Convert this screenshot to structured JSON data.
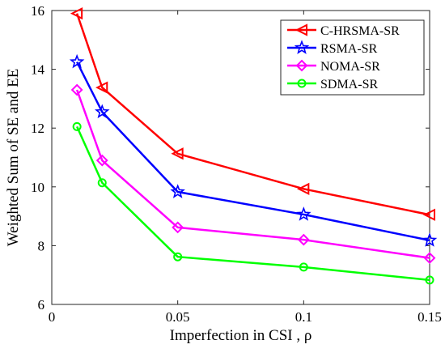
{
  "chart_data": {
    "type": "line",
    "xlabel": "Imperfection in CSI , ρ",
    "ylabel": "Weighted Sum of SE and EE",
    "xlim": [
      0,
      0.15
    ],
    "ylim": [
      6,
      16
    ],
    "x_ticks": [
      0,
      0.05,
      0.1,
      0.15
    ],
    "x_tick_labels": [
      "0",
      "0.05",
      "0.1",
      "0.15"
    ],
    "y_ticks": [
      6,
      8,
      10,
      12,
      14,
      16
    ],
    "y_tick_labels": [
      "6",
      "8",
      "10",
      "12",
      "14",
      "16"
    ],
    "grid": false,
    "legend_position": "top-right",
    "x": [
      0.01,
      0.02,
      0.05,
      0.1,
      0.15
    ],
    "series": [
      {
        "name": "C-HRSMA-SR",
        "color": "#ff0000",
        "marker": "triangle-left",
        "values": [
          15.9,
          13.38,
          11.13,
          9.93,
          9.05
        ]
      },
      {
        "name": "RSMA-SR",
        "color": "#0000ff",
        "marker": "star",
        "values": [
          14.25,
          12.55,
          9.83,
          9.06,
          8.18
        ]
      },
      {
        "name": "NOMA-SR",
        "color": "#ff00ff",
        "marker": "diamond",
        "values": [
          13.3,
          10.9,
          8.62,
          8.2,
          7.58
        ]
      },
      {
        "name": "SDMA-SR",
        "color": "#00ff00",
        "marker": "circle",
        "values": [
          12.05,
          10.14,
          7.62,
          7.27,
          6.83
        ]
      }
    ]
  }
}
